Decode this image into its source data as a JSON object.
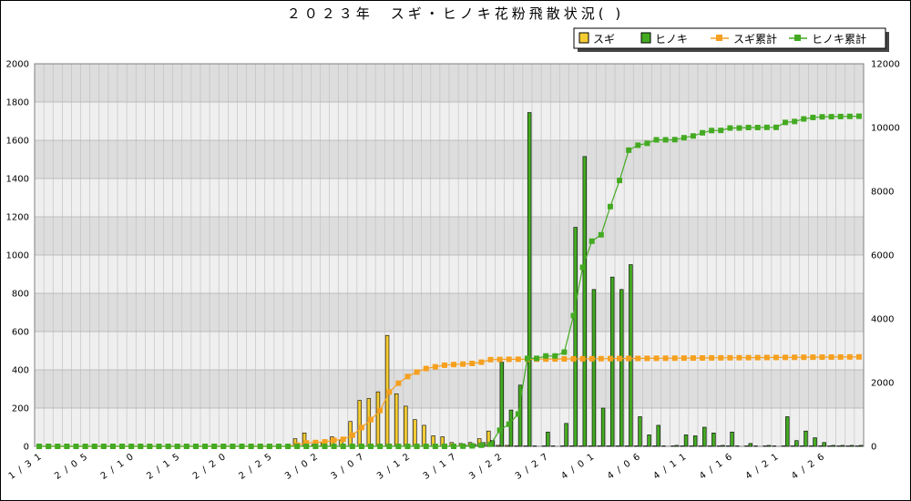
{
  "chart_data": {
    "type": "bar",
    "title": "２０２３年　スギ・ヒノキ花粉飛散状況( )",
    "x_start": "1/31",
    "x": [
      "1/31",
      "2/01",
      "2/02",
      "2/03",
      "2/04",
      "2/05",
      "2/06",
      "2/07",
      "2/08",
      "2/09",
      "2/10",
      "2/11",
      "2/12",
      "2/13",
      "2/14",
      "2/15",
      "2/16",
      "2/17",
      "2/18",
      "2/19",
      "2/20",
      "2/21",
      "2/22",
      "2/23",
      "2/24",
      "2/25",
      "2/26",
      "2/27",
      "2/28",
      "3/01",
      "3/02",
      "3/03",
      "3/04",
      "3/05",
      "3/06",
      "3/07",
      "3/08",
      "3/09",
      "3/10",
      "3/11",
      "3/12",
      "3/13",
      "3/14",
      "3/15",
      "3/16",
      "3/17",
      "3/18",
      "3/19",
      "3/20",
      "3/21",
      "3/22",
      "3/23",
      "3/24",
      "3/25",
      "3/26",
      "3/27",
      "3/28",
      "3/29",
      "3/30",
      "3/31",
      "4/01",
      "4/02",
      "4/03",
      "4/04",
      "4/05",
      "4/06",
      "4/07",
      "4/08",
      "4/09",
      "4/10",
      "4/11",
      "4/12",
      "4/13",
      "4/14",
      "4/15",
      "4/16",
      "4/17",
      "4/18",
      "4/19",
      "4/20",
      "4/21",
      "4/22",
      "4/23",
      "4/24",
      "4/25",
      "4/26",
      "4/27",
      "4/28",
      "4/29",
      "4/30"
    ],
    "x_tick_labels": [
      "1/31",
      "2/05",
      "2/10",
      "2/15",
      "2/20",
      "2/25",
      "3/02",
      "3/07",
      "3/12",
      "3/17",
      "3/22",
      "3/27",
      "4/01",
      "4/06",
      "4/11",
      "4/16",
      "4/21",
      "4/26"
    ],
    "y_left_ticks": [
      "0",
      "200",
      "400",
      "600",
      "800",
      "1000",
      "1200",
      "1400",
      "1600",
      "1800",
      "2000"
    ],
    "y_right_ticks": [
      "0",
      "2000",
      "4000",
      "6000",
      "8000",
      "10000",
      "12000"
    ],
    "y_left_lim": [
      0,
      2000
    ],
    "y_right_lim": [
      0,
      12000
    ],
    "grid": true,
    "legend_position": "top-right",
    "series": [
      {
        "name": "スギ",
        "kind": "bar",
        "axis": "left",
        "color": "#F5CC33",
        "values": [
          0,
          0,
          0,
          0,
          0,
          0,
          0,
          0,
          0,
          0,
          0,
          0,
          0,
          0,
          0,
          0,
          0,
          0,
          0,
          0,
          0,
          0,
          0,
          0,
          0,
          0,
          0,
          0,
          40,
          70,
          10,
          20,
          50,
          30,
          130,
          240,
          250,
          285,
          580,
          275,
          210,
          140,
          110,
          55,
          50,
          20,
          15,
          20,
          40,
          80,
          5,
          5,
          2,
          2,
          2,
          2,
          2,
          2,
          2,
          2,
          2,
          2,
          2,
          2,
          2,
          2,
          2,
          2,
          2,
          2,
          2,
          2,
          2,
          2,
          2,
          2,
          2,
          2,
          2,
          2,
          2,
          2,
          2,
          2,
          2,
          2,
          2,
          2,
          2,
          2
        ]
      },
      {
        "name": "ヒノキ",
        "kind": "bar",
        "axis": "left",
        "color": "#44AA22",
        "values": [
          0,
          0,
          0,
          0,
          0,
          0,
          0,
          0,
          0,
          0,
          0,
          0,
          0,
          0,
          0,
          0,
          0,
          0,
          0,
          0,
          0,
          0,
          0,
          0,
          0,
          0,
          0,
          0,
          0,
          0,
          0,
          0,
          0,
          0,
          0,
          0,
          0,
          0,
          0,
          0,
          0,
          0,
          0,
          0,
          0,
          0,
          5,
          10,
          20,
          30,
          440,
          190,
          320,
          1745,
          0,
          75,
          0,
          120,
          1145,
          1515,
          820,
          200,
          885,
          820,
          950,
          155,
          60,
          110,
          0,
          5,
          60,
          55,
          100,
          70,
          5,
          75,
          0,
          15,
          0,
          5,
          0,
          155,
          30,
          80,
          45,
          20,
          5,
          5,
          5,
          5
        ]
      },
      {
        "name": "スギ累計",
        "kind": "line",
        "axis": "right",
        "color": "#F5A020",
        "values": [
          0,
          0,
          0,
          0,
          0,
          0,
          0,
          0,
          0,
          0,
          0,
          0,
          0,
          0,
          0,
          0,
          0,
          0,
          0,
          0,
          0,
          0,
          0,
          0,
          0,
          0,
          0,
          0,
          40,
          110,
          120,
          140,
          190,
          220,
          350,
          590,
          840,
          1125,
          1705,
          1980,
          2190,
          2330,
          2440,
          2495,
          2545,
          2565,
          2580,
          2600,
          2640,
          2720,
          2725,
          2730,
          2732,
          2734,
          2736,
          2738,
          2740,
          2742,
          2744,
          2746,
          2748,
          2750,
          2752,
          2754,
          2756,
          2758,
          2760,
          2762,
          2764,
          2766,
          2768,
          2770,
          2772,
          2774,
          2776,
          2778,
          2780,
          2782,
          2784,
          2786,
          2788,
          2790,
          2792,
          2794,
          2796,
          2798,
          2800,
          2802,
          2804,
          2806
        ]
      },
      {
        "name": "ヒノキ累計",
        "kind": "line",
        "axis": "right",
        "color": "#44AA22",
        "values": [
          0,
          0,
          0,
          0,
          0,
          0,
          0,
          0,
          0,
          0,
          0,
          0,
          0,
          0,
          0,
          0,
          0,
          0,
          0,
          0,
          0,
          0,
          0,
          0,
          0,
          0,
          0,
          0,
          0,
          0,
          0,
          0,
          0,
          0,
          0,
          0,
          0,
          0,
          0,
          0,
          0,
          0,
          0,
          0,
          0,
          0,
          5,
          15,
          35,
          65,
          505,
          695,
          1015,
          2760,
          2760,
          2835,
          2835,
          2955,
          4100,
          5615,
          6435,
          6635,
          7520,
          8340,
          9290,
          9445,
          9505,
          9615,
          9615,
          9620,
          9680,
          9735,
          9835,
          9905,
          9910,
          9985,
          9985,
          10000,
          10000,
          10005,
          10005,
          10160,
          10190,
          10270,
          10315,
          10335,
          10340,
          10345,
          10350,
          10355
        ]
      }
    ]
  },
  "colors": {
    "band_dark": "#DDDDDD",
    "band_light": "#EFEFEF",
    "grid_line": "#BDBDBD"
  }
}
